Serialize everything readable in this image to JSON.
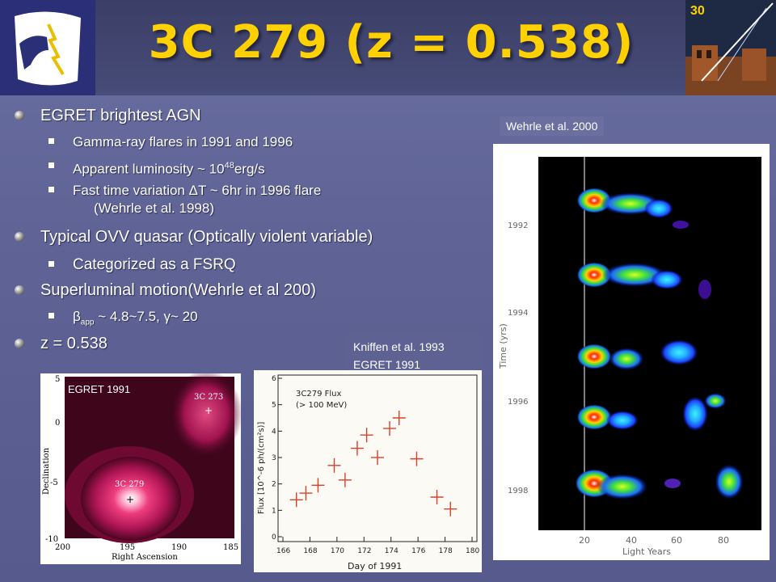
{
  "title": "3C 279 (z = 0.538)",
  "bullets": [
    {
      "text": "EGRET brightest AGN",
      "sub": [
        {
          "text": "Gamma-ray flares in 1991 and 1996"
        },
        {
          "pre": "Apparent luminosity ~ 10",
          "sup": "48",
          "post": "erg/s"
        },
        {
          "text": "Fast time variation ΔT ~ 6hr in 1996 flare",
          "text2": "(Wehrle et al. 1998)"
        }
      ]
    },
    {
      "text": "Typical OVV quasar (Optically violent variable)",
      "sub": [
        {
          "text": "Categorized as a FSRQ"
        }
      ]
    },
    {
      "text": "Superluminal motion(Wehrle et al 200)",
      "sub": [
        {
          "pre": "β",
          "subscript": "app",
          "post": " ~ 4.8~7.5, γ~ 20"
        }
      ]
    },
    {
      "text": "z = 0.538",
      "sub": []
    }
  ],
  "captions": {
    "wehrle": "Wehrle et al. 2000",
    "kniffen1": "Kniffen et al. 1993",
    "kniffen2": "EGRET 1991"
  },
  "egret_map": {
    "label": "EGRET 1991",
    "source1": "3C 273",
    "source2": "3C 279",
    "xlabel": "Right Ascension",
    "ylabel": "Declination",
    "xticks": [
      "200",
      "195",
      "190",
      "185"
    ],
    "yticks": [
      "5",
      "0",
      "-5",
      "-10"
    ]
  },
  "flux_plot": {
    "inset": "3C279 Flux",
    "inset2": "(> 100 MeV)",
    "xlabel": "Day of 1991",
    "ylabel": "Flux [10^-6 ph/(cm²s)]",
    "xticks": [
      "166",
      "168",
      "170",
      "172",
      "174",
      "176",
      "178",
      "180"
    ],
    "yticks": [
      "0",
      "1",
      "2",
      "3",
      "4",
      "5",
      "6"
    ]
  },
  "vlbi": {
    "ylabel": "Time (yrs)",
    "xlabel": "Light Years",
    "yticks": [
      "1992",
      "1994",
      "1996",
      "1998"
    ],
    "xticks": [
      "20",
      "40",
      "60",
      "80"
    ]
  },
  "chart_data": {
    "type": "scatter",
    "title": "3C279 Flux (> 100 MeV)",
    "xlabel": "Day of 1991",
    "ylabel": "Flux [10^-6 ph/(cm²s)]",
    "xlim": [
      166,
      180
    ],
    "ylim": [
      0,
      6
    ],
    "points": [
      {
        "x": 167.0,
        "y": 1.4
      },
      {
        "x": 167.7,
        "y": 1.65
      },
      {
        "x": 168.6,
        "y": 1.95
      },
      {
        "x": 169.8,
        "y": 2.7
      },
      {
        "x": 170.6,
        "y": 2.15
      },
      {
        "x": 171.5,
        "y": 3.35
      },
      {
        "x": 172.2,
        "y": 3.85
      },
      {
        "x": 173.0,
        "y": 3.0
      },
      {
        "x": 173.9,
        "y": 4.1
      },
      {
        "x": 174.6,
        "y": 4.5
      },
      {
        "x": 175.9,
        "y": 2.95
      },
      {
        "x": 177.4,
        "y": 1.5
      },
      {
        "x": 178.4,
        "y": 1.05
      }
    ]
  }
}
